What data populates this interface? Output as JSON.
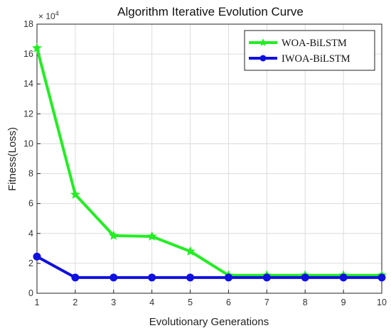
{
  "chart_data": {
    "type": "line",
    "title": "Algorithm Iterative Evolution Curve",
    "xlabel": "Evolutionary Generations",
    "ylabel": "Fitness(Loss)",
    "y_multiplier": "× 10",
    "y_exponent": "4",
    "x": [
      1,
      2,
      3,
      4,
      5,
      6,
      7,
      8,
      9,
      10
    ],
    "xlim": [
      1,
      10
    ],
    "ylim": [
      0,
      18
    ],
    "x_ticks": [
      "1",
      "2",
      "3",
      "4",
      "5",
      "6",
      "7",
      "8",
      "9",
      "10"
    ],
    "y_ticks": [
      "0",
      "2",
      "4",
      "6",
      "8",
      "10",
      "12",
      "14",
      "16",
      "18"
    ],
    "grid": true,
    "legend_position": "top-right",
    "series": [
      {
        "name": "WOA-BiLSTM",
        "color": "#22ee22",
        "marker": "star",
        "values": [
          16.4,
          6.6,
          3.85,
          3.8,
          2.8,
          1.2,
          1.2,
          1.2,
          1.2,
          1.2
        ]
      },
      {
        "name": "IWOA-BiLSTM",
        "color": "#1010e0",
        "marker": "circle",
        "values": [
          2.45,
          1.05,
          1.05,
          1.05,
          1.05,
          1.05,
          1.05,
          1.05,
          1.05,
          1.05
        ]
      }
    ]
  }
}
